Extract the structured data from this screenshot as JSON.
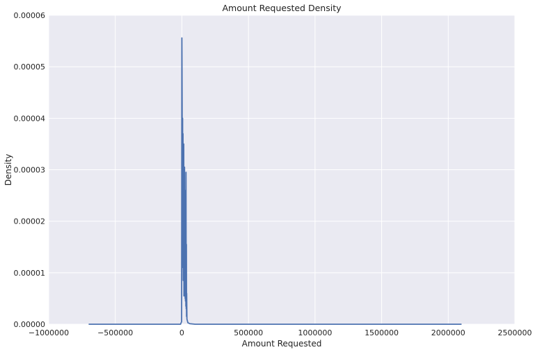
{
  "chart_data": {
    "type": "line",
    "title": "Amount Requested Density",
    "xlabel": "Amount Requested",
    "ylabel": "Density",
    "xlim": [
      -1000000,
      2500000
    ],
    "ylim": [
      0,
      6e-05
    ],
    "x_ticks": [
      -1000000,
      -500000,
      0,
      500000,
      1000000,
      1500000,
      2000000,
      2500000
    ],
    "x_tick_labels": [
      "−1000000",
      "−500000",
      "0",
      "500000",
      "1000000",
      "1500000",
      "2000000",
      "2500000"
    ],
    "y_ticks": [
      0,
      1e-05,
      2e-05,
      3e-05,
      4e-05,
      5e-05,
      6e-05
    ],
    "y_tick_labels": [
      "0.00000",
      "0.00001",
      "0.00002",
      "0.00003",
      "0.00004",
      "0.00005",
      "0.00006"
    ],
    "grid": true,
    "colors": {
      "background": "#eaeaf2",
      "grid": "#ffffff",
      "line": "#4c72b0"
    },
    "series": [
      {
        "x": [
          -700000,
          -10000,
          -2000,
          0,
          1000,
          2000,
          3000,
          4500,
          5500,
          7000,
          8500,
          10000,
          11500,
          12500,
          14000,
          15500,
          17000,
          18500,
          20000,
          21500,
          23000,
          24500,
          25500,
          27000,
          28500,
          30000,
          31000,
          32500,
          34000,
          35000,
          36000,
          38000,
          45000,
          60000,
          100000,
          2100000
        ],
        "y": [
          0,
          0,
          5e-07,
          5.56e-05,
          5e-05,
          4.3e-05,
          1.75e-05,
          3.95e-05,
          4e-05,
          1.1e-05,
          3.7e-05,
          8.5e-06,
          3.35e-05,
          1.75e-05,
          3.5e-05,
          5.5e-06,
          2.75e-05,
          6.5e-06,
          3.05e-05,
          5.5e-06,
          2.6e-05,
          5e-06,
          1.9e-05,
          4.5e-06,
          1.5e-05,
          3.5e-06,
          2.95e-05,
          3e-06,
          1.55e-05,
          1.5e-06,
          6e-06,
          1e-06,
          3e-07,
          1e-07,
          0,
          0
        ]
      }
    ]
  }
}
